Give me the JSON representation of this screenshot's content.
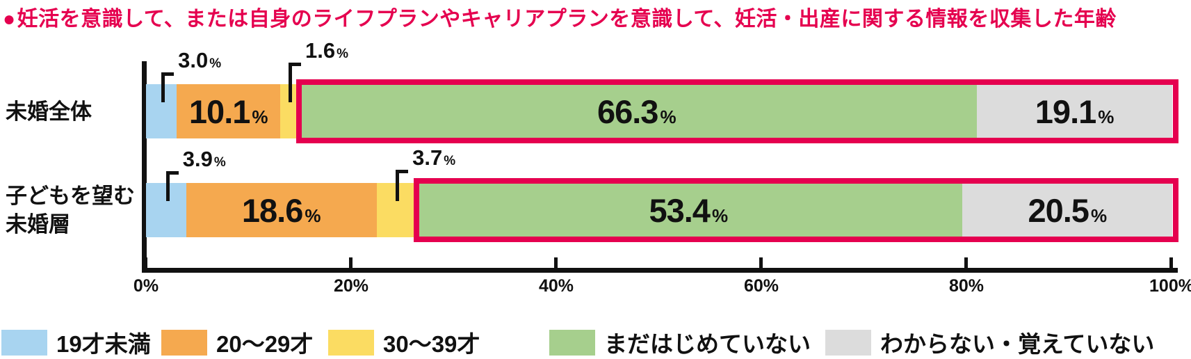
{
  "title": {
    "bullet": "●",
    "text": "妊活を意識して、または自身のライフプランやキャリアプランを意識して、妊活・出産に関する情報を収集した年齢"
  },
  "chart_data": {
    "type": "bar",
    "variant": "horizontal-stacked",
    "unit": "%",
    "x_axis": {
      "min": 0,
      "max": 100,
      "tick_step": 20,
      "tick_labels": [
        "0%",
        "20%",
        "40%",
        "60%",
        "80%",
        "100%"
      ]
    },
    "categories": [
      {
        "label": "未婚全体",
        "lines": [
          "未婚全体"
        ]
      },
      {
        "label": "子どもを望む未婚層",
        "lines": [
          "子どもを望む",
          "未婚層"
        ]
      }
    ],
    "series": [
      {
        "name": "19才未満",
        "color": "#A8D4F0",
        "label_style": "callout",
        "highlighted": false,
        "values": [
          3.0,
          3.9
        ]
      },
      {
        "name": "20〜29才",
        "color": "#F5A94F",
        "label_style": "inline",
        "highlighted": false,
        "values": [
          10.1,
          18.6
        ]
      },
      {
        "name": "30〜39才",
        "color": "#FBDC62",
        "label_style": "callout",
        "highlighted": false,
        "values": [
          1.6,
          3.7
        ]
      },
      {
        "name": "まだはじめていない",
        "color": "#A6CF8D",
        "label_style": "inline",
        "highlighted": true,
        "values": [
          66.3,
          53.4
        ]
      },
      {
        "name": "わからない・覚えていない",
        "color": "#DCDCDC",
        "label_style": "inline",
        "highlighted": true,
        "values": [
          19.1,
          20.5
        ]
      }
    ],
    "highlight_border_color": "#E5004F",
    "legend_position": "bottom",
    "grid": false
  },
  "colors": {
    "accent_red": "#E5004F",
    "axis_black": "#111111"
  }
}
